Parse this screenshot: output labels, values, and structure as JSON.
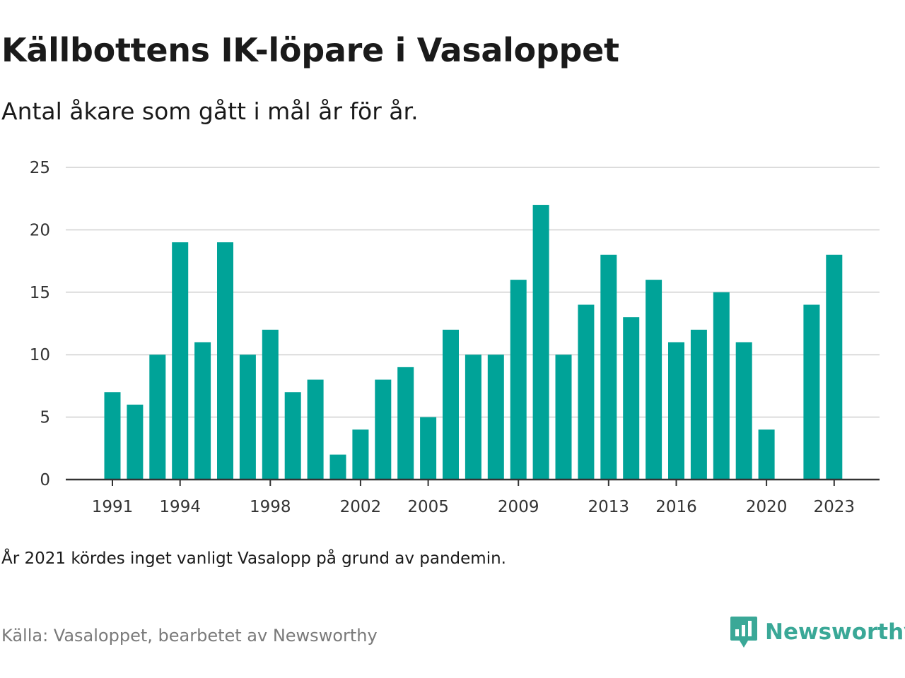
{
  "title": "Källbottens IK-löpare i Vasaloppet",
  "subtitle": "Antal åkare som gått i mål år för år.",
  "note": "År 2021 kördes inget vanligt Vasalopp på grund av pandemin.",
  "source": "Källa: Vasaloppet, bearbetet av Newsworthy",
  "brand": {
    "name": "Newsworthy",
    "color": "#3aa897"
  },
  "chart_data": {
    "type": "bar",
    "title": "Källbottens IK-löpare i Vasaloppet",
    "subtitle": "Antal åkare som gått i mål år för år.",
    "xlabel": "",
    "ylabel": "",
    "ylim": [
      0,
      25
    ],
    "yticks": [
      0,
      5,
      10,
      15,
      20,
      25
    ],
    "xticks": [
      1991,
      1994,
      1998,
      2002,
      2005,
      2009,
      2013,
      2016,
      2020,
      2023
    ],
    "grid": true,
    "bar_color": "#00a398",
    "categories": [
      1991,
      1992,
      1993,
      1994,
      1995,
      1996,
      1997,
      1998,
      1999,
      2000,
      2001,
      2002,
      2003,
      2004,
      2005,
      2006,
      2007,
      2008,
      2009,
      2010,
      2011,
      2012,
      2013,
      2014,
      2015,
      2016,
      2017,
      2018,
      2019,
      2020,
      2021,
      2022,
      2023
    ],
    "values": [
      7,
      6,
      10,
      19,
      11,
      19,
      10,
      12,
      7,
      8,
      2,
      4,
      8,
      9,
      5,
      12,
      10,
      10,
      16,
      22,
      10,
      14,
      18,
      13,
      16,
      11,
      12,
      15,
      11,
      4,
      null,
      14,
      18
    ]
  }
}
